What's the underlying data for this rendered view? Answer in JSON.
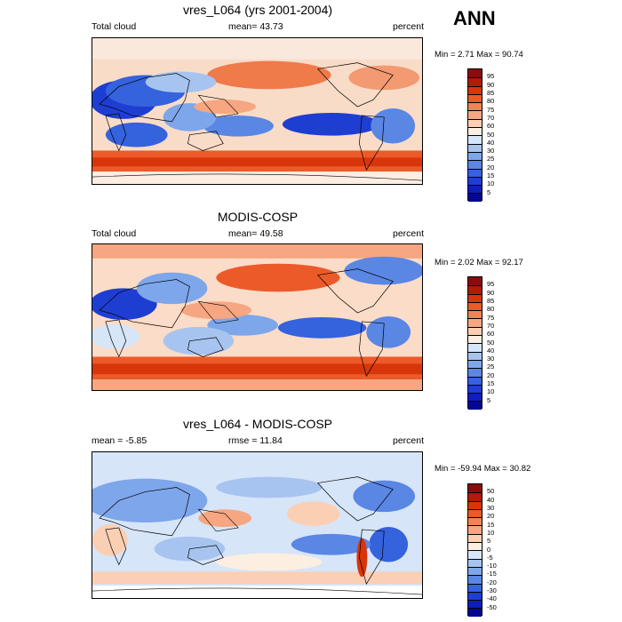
{
  "season": "ANN",
  "units": "percent",
  "panels": [
    {
      "title": "vres_L064 (yrs 2001-2004)",
      "left_label": "Total cloud",
      "center_label": "mean=  43.73",
      "right_label": "percent",
      "min_max": "Min =   2.71 Max =  90.74",
      "colorbar_labels": [
        "95",
        "90",
        "85",
        "80",
        "75",
        "70",
        "60",
        "50",
        "40",
        "30",
        "25",
        "20",
        "15",
        "10",
        "5"
      ],
      "colors": [
        "#8b0c0c",
        "#b21a0a",
        "#d8360a",
        "#ec5a2a",
        "#f3825a",
        "#f6a680",
        "#fbcfb4",
        "#fdeee2",
        "#d6e5f8",
        "#a7c4f0",
        "#7ea6ea",
        "#5a86e4",
        "#3562dd",
        "#1e3ed2",
        "#0d1fb8",
        "#04088f"
      ]
    },
    {
      "title": "MODIS-COSP",
      "left_label": "Total cloud",
      "center_label": "mean=  49.58",
      "right_label": "percent",
      "min_max": "Min =   2.02 Max =  92.17",
      "colorbar_labels": [
        "95",
        "90",
        "85",
        "80",
        "75",
        "70",
        "60",
        "50",
        "40",
        "30",
        "25",
        "20",
        "15",
        "10",
        "5"
      ],
      "colors": [
        "#8b0c0c",
        "#b21a0a",
        "#d8360a",
        "#ec5a2a",
        "#f3825a",
        "#f6a680",
        "#fbcfb4",
        "#fdeee2",
        "#d6e5f8",
        "#a7c4f0",
        "#7ea6ea",
        "#5a86e4",
        "#3562dd",
        "#1e3ed2",
        "#0d1fb8",
        "#04088f"
      ]
    },
    {
      "title": "vres_L064 - MODIS-COSP",
      "left_label": "mean =  -5.85",
      "center_label": "rmse =  11.84",
      "right_label": "percent",
      "min_max": "Min = -59.94 Max =  30.82",
      "colorbar_labels": [
        "50",
        "40",
        "30",
        "20",
        "15",
        "10",
        "5",
        "0",
        "-5",
        "-10",
        "-15",
        "-20",
        "-30",
        "-40",
        "-50"
      ],
      "colors": [
        "#8b0c0c",
        "#b21a0a",
        "#d8360a",
        "#ec5a2a",
        "#f3825a",
        "#f6a680",
        "#fbcfb4",
        "#fdeee2",
        "#d6e5f8",
        "#a7c4f0",
        "#7ea6ea",
        "#5a86e4",
        "#3562dd",
        "#1e3ed2",
        "#0d1fb8",
        "#04088f"
      ]
    }
  ]
}
